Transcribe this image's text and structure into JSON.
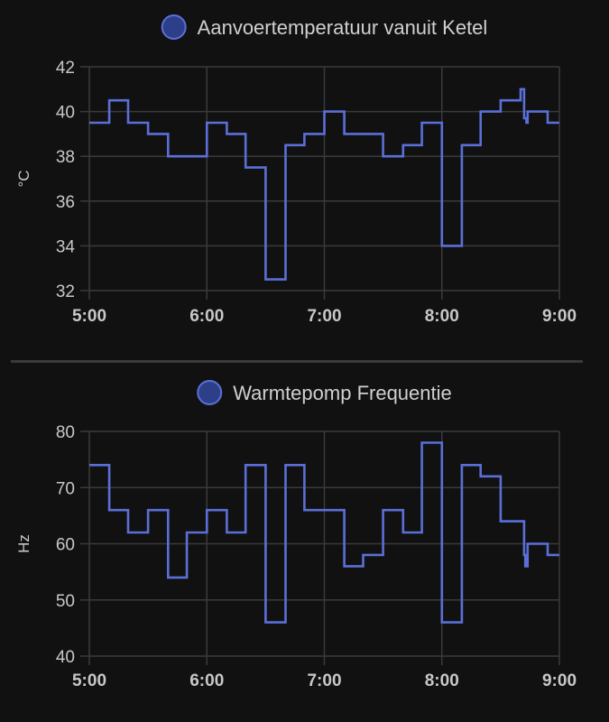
{
  "theme": {
    "background": "#111111",
    "grid": "#3a3a3a",
    "series_color": "#5b6fd8",
    "legend_fill": "#2e3f8a",
    "text": "#c8c8c8"
  },
  "chart_data": [
    {
      "type": "line",
      "step": true,
      "legend_placement": "top-center",
      "grid": true,
      "ylabel": "°C",
      "xlabel": "",
      "ylim": [
        32,
        42
      ],
      "yticks": [
        32,
        34,
        36,
        38,
        40,
        42
      ],
      "xlim": [
        5.0,
        9.0
      ],
      "xticks": [
        5,
        6,
        7,
        8,
        9
      ],
      "xtick_labels": [
        "5:00",
        "6:00",
        "7:00",
        "8:00",
        "9:00"
      ],
      "series": [
        {
          "name": "Aanvoertemperatuur vanuit Ketel",
          "x": [
            5.0,
            5.17,
            5.33,
            5.5,
            5.67,
            6.0,
            6.17,
            6.33,
            6.5,
            6.67,
            6.83,
            7.0,
            7.17,
            7.5,
            7.67,
            7.83,
            8.0,
            8.17,
            8.33,
            8.5,
            8.67,
            8.7,
            8.72,
            8.73,
            8.75,
            8.9,
            9.0
          ],
          "values": [
            39.5,
            40.5,
            39.5,
            39.0,
            38.0,
            39.5,
            39.0,
            37.5,
            32.5,
            38.5,
            39.0,
            40.0,
            39.0,
            38.0,
            38.5,
            39.5,
            34.0,
            38.5,
            40.0,
            40.5,
            41.0,
            39.7,
            39.5,
            40.0,
            40.0,
            39.5,
            39.5
          ]
        }
      ]
    },
    {
      "type": "line",
      "step": true,
      "legend_placement": "top-center",
      "grid": true,
      "ylabel": "Hz",
      "xlabel": "",
      "ylim": [
        40,
        80
      ],
      "yticks": [
        40,
        50,
        60,
        70,
        80
      ],
      "xlim": [
        5.0,
        9.0
      ],
      "xticks": [
        5,
        6,
        7,
        8,
        9
      ],
      "xtick_labels": [
        "5:00",
        "6:00",
        "7:00",
        "8:00",
        "9:00"
      ],
      "series": [
        {
          "name": "Warmtepomp Frequentie",
          "x": [
            5.0,
            5.17,
            5.33,
            5.5,
            5.67,
            5.83,
            6.0,
            6.17,
            6.33,
            6.5,
            6.67,
            6.83,
            7.17,
            7.33,
            7.5,
            7.67,
            7.83,
            8.0,
            8.17,
            8.33,
            8.5,
            8.7,
            8.71,
            8.72,
            8.73,
            8.9,
            9.0
          ],
          "values": [
            74,
            66,
            62,
            66,
            54,
            62,
            66,
            62,
            74,
            46,
            74,
            66,
            56,
            58,
            66,
            62,
            78,
            46,
            74,
            72,
            64,
            58,
            56,
            56,
            60,
            58,
            58
          ]
        }
      ]
    }
  ]
}
